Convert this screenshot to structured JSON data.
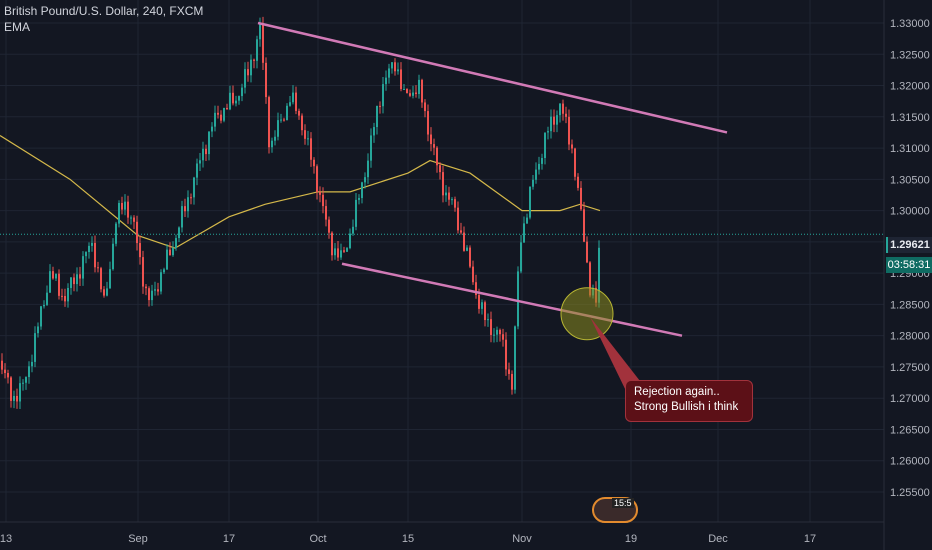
{
  "header": {
    "symbol_line": "British Pound/U.S. Dollar, 240, FXCM",
    "indicator": "EMA"
  },
  "price_axis": {
    "ticks": [
      "1.33000",
      "1.32500",
      "1.32000",
      "1.31500",
      "1.31000",
      "1.30500",
      "1.30000",
      "1.29500",
      "1.29000",
      "1.28500",
      "1.28000",
      "1.27500",
      "1.27000",
      "1.26500",
      "1.26000",
      "1.25500"
    ],
    "last_price": "1.29621",
    "countdown": "03:58:31"
  },
  "time_axis": {
    "ticks": [
      "13",
      "Sep",
      "17",
      "Oct",
      "15",
      "Nov",
      "19",
      "Dec",
      "17"
    ]
  },
  "annotation": {
    "line1": "Rejection again..",
    "line2": "Strong Bullish i think"
  },
  "badge_text": "15:5",
  "colors": {
    "background": "#131722",
    "bull": "#26a69a",
    "bear": "#ef5350",
    "ema": "#d4b84a",
    "trendline": "#d17ab6",
    "circle": "#8a8a1e"
  },
  "chart_data": {
    "type": "line",
    "title": "British Pound/U.S. Dollar, 240, FXCM",
    "xlabel": "",
    "ylabel": "",
    "ylim": [
      1.2535,
      1.3325
    ],
    "x": [
      "13",
      "Sep",
      "17",
      "Oct",
      "15",
      "Nov",
      "19",
      "Dec",
      "17"
    ],
    "series": [
      {
        "name": "",
        "points": [
          [
            "13",
            1.276
          ],
          [
            "",
            1.27
          ],
          [
            "",
            1.272
          ],
          [
            "",
            1.28
          ],
          [
            "",
            1.29
          ],
          [
            "",
            1.286
          ],
          [
            "",
            1.29
          ],
          [
            "",
            1.295
          ],
          [
            "",
            1.285
          ],
          [
            "",
            1.298
          ],
          [
            "",
            1.302
          ],
          [
            "Sep",
            1.296
          ],
          [
            "",
            1.285
          ],
          [
            "",
            1.29
          ],
          [
            "",
            1.296
          ],
          [
            "",
            1.303
          ],
          [
            "",
            1.31
          ],
          [
            "",
            1.315
          ],
          [
            "",
            1.318
          ],
          [
            "17",
            1.322
          ],
          [
            "",
            1.329
          ],
          [
            "",
            1.31
          ],
          [
            "",
            1.318
          ],
          [
            "",
            1.315
          ],
          [
            "",
            1.304
          ],
          [
            "Oct",
            1.295
          ],
          [
            "",
            1.292
          ],
          [
            "",
            1.3
          ],
          [
            "",
            1.31
          ],
          [
            "",
            1.32
          ],
          [
            "15",
            1.324
          ],
          [
            "",
            1.318
          ],
          [
            "",
            1.32
          ],
          [
            "",
            1.312
          ],
          [
            "",
            1.305
          ],
          [
            "",
            1.301
          ],
          [
            "",
            1.296
          ],
          [
            "",
            1.288
          ],
          [
            "",
            1.282
          ],
          [
            "",
            1.28
          ],
          [
            "Nov",
            1.272
          ],
          [
            "",
            1.295
          ],
          [
            "",
            1.304
          ],
          [
            "",
            1.312
          ],
          [
            "",
            1.317
          ],
          [
            "",
            1.31
          ],
          [
            "",
            1.298
          ],
          [
            "",
            1.288
          ],
          [
            "",
            1.285
          ],
          [
            "",
            1.2962
          ]
        ]
      },
      {
        "name": "EMA",
        "points": [
          [
            "13",
            1.312
          ],
          [
            "",
            1.305
          ],
          [
            "Sep",
            1.296
          ],
          [
            "",
            1.294
          ],
          [
            "17",
            1.299
          ],
          [
            "",
            1.301
          ],
          [
            "Oct",
            1.303
          ],
          [
            "",
            1.303
          ],
          [
            "15",
            1.306
          ],
          [
            "",
            1.308
          ],
          [
            "",
            1.306
          ],
          [
            "Nov",
            1.3
          ],
          [
            "",
            1.3
          ],
          [
            "",
            1.301
          ],
          [
            "",
            1.3
          ]
        ]
      }
    ],
    "trendlines": [
      {
        "from": [
          "17",
          1.33
        ],
        "to": [
          "Dec",
          1.3125
        ]
      },
      {
        "from": [
          "Oct",
          1.2915
        ],
        "to": [
          "Dec",
          1.28
        ]
      }
    ],
    "grid": true,
    "legend": "none"
  }
}
